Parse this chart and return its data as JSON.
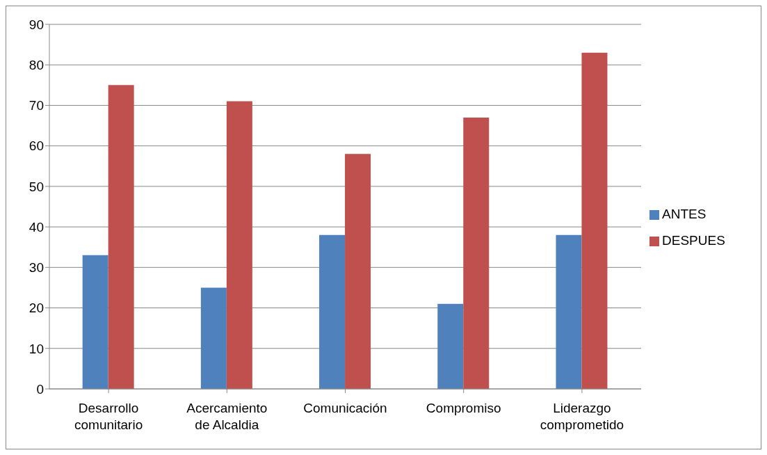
{
  "chart_data": {
    "type": "bar",
    "categories": [
      "Desarrollo comunitario",
      "Acercamiento de Alcaldia",
      "Comunicación",
      "Compromiso",
      "Liderazgo comprometido"
    ],
    "series": [
      {
        "name": "ANTES",
        "color": "#4f81bd",
        "values": [
          33,
          25,
          38,
          21,
          38
        ]
      },
      {
        "name": "DESPUES",
        "color": "#c0504d",
        "values": [
          75,
          71,
          58,
          67,
          83
        ]
      }
    ],
    "ylim": [
      0,
      90
    ],
    "yticks": [
      0,
      10,
      20,
      30,
      40,
      50,
      60,
      70,
      80,
      90
    ],
    "grid": "y",
    "legend": "right"
  }
}
